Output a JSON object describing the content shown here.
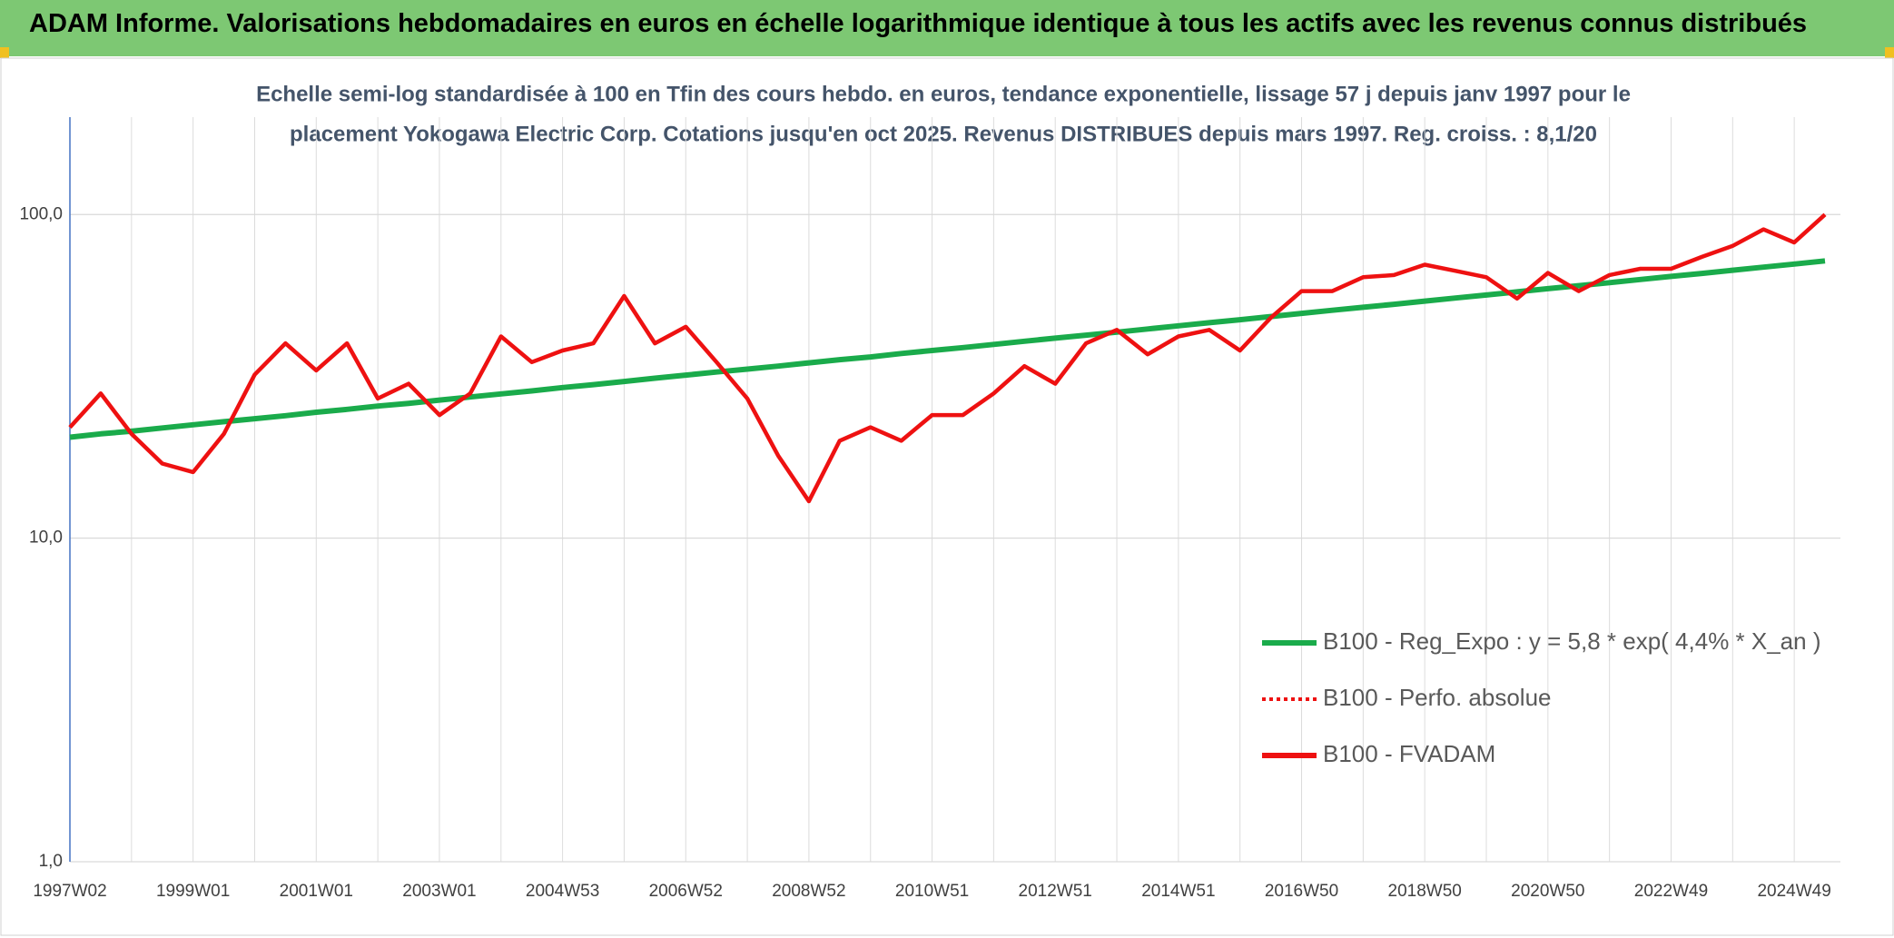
{
  "header": {
    "title": "ADAM Informe. Valorisations hebdomadaires en euros en échelle logarithmique identique à tous les actifs avec les revenus connus distribués"
  },
  "chart_data": {
    "type": "line",
    "subtitle": [
      "Echelle semi-log standardisée à 100 en Tfin des cours hebdo. en euros, tendance exponentielle, lissage 57 j depuis janv 1997 pour le",
      "placement Yokogawa Electric Corp. Cotations jusqu'en oct 2025. Revenus DISTRIBUES depuis mars 1997. Reg. croiss. : 8,1/20"
    ],
    "categories": [
      "1997W02",
      null,
      null,
      null,
      "1999W01",
      null,
      null,
      null,
      "2001W01",
      null,
      null,
      null,
      "2003W01",
      null,
      null,
      null,
      "2004W53",
      null,
      null,
      null,
      "2006W52",
      null,
      null,
      null,
      "2008W52",
      null,
      null,
      null,
      "2010W51",
      null,
      null,
      null,
      "2012W51",
      null,
      null,
      null,
      "2014W51",
      null,
      null,
      null,
      "2016W50",
      null,
      null,
      null,
      "2018W50",
      null,
      null,
      null,
      "2020W50",
      null,
      null,
      null,
      "2022W49",
      null,
      null,
      null,
      "2024W49",
      null
    ],
    "log_scale": true,
    "ylim": [
      1,
      200
    ],
    "yticks": [
      {
        "value": 1,
        "label": "1,0"
      },
      {
        "value": 10,
        "label": "10,0"
      },
      {
        "value": 100,
        "label": "100,0"
      }
    ],
    "grid": true,
    "series": [
      {
        "name": "B100 - Reg_Expo : y = 5,8 * exp( 4,4% *  X_an )",
        "color": "#1aab4b",
        "style": "solid",
        "values": [
          20.5,
          21.0,
          21.4,
          21.9,
          22.4,
          22.9,
          23.4,
          23.9,
          24.5,
          25.0,
          25.6,
          26.1,
          26.7,
          27.3,
          27.9,
          28.5,
          29.2,
          29.8,
          30.5,
          31.2,
          31.9,
          32.6,
          33.3,
          34.0,
          34.8,
          35.6,
          36.3,
          37.2,
          38.0,
          38.8,
          39.7,
          40.6,
          41.5,
          42.4,
          43.3,
          44.3,
          45.3,
          46.3,
          47.3,
          48.4,
          49.5,
          50.6,
          51.7,
          52.8,
          54.0,
          55.2,
          56.4,
          57.7,
          59.0,
          60.3,
          61.6,
          63.0,
          64.4,
          65.8,
          67.3,
          68.8,
          70.3,
          71.9
        ]
      },
      {
        "name": "B100 - Perfo. absolue",
        "color": "#ee1111",
        "style": "dotted"
      },
      {
        "name": "B100 - FVADAM",
        "color": "#ee1111",
        "style": "solid",
        "values": [
          22,
          28,
          21,
          17,
          16,
          21,
          32,
          40,
          33,
          40,
          27,
          30,
          24,
          28,
          42,
          35,
          38,
          40,
          56,
          40,
          45,
          35,
          27,
          18,
          13,
          20,
          22,
          20,
          24,
          24,
          28,
          34,
          30,
          40,
          44,
          37,
          42,
          44,
          38,
          48,
          58,
          58,
          64,
          65,
          70,
          67,
          64,
          55,
          66,
          58,
          65,
          68,
          68,
          74,
          80,
          90,
          82,
          100
        ]
      }
    ]
  }
}
